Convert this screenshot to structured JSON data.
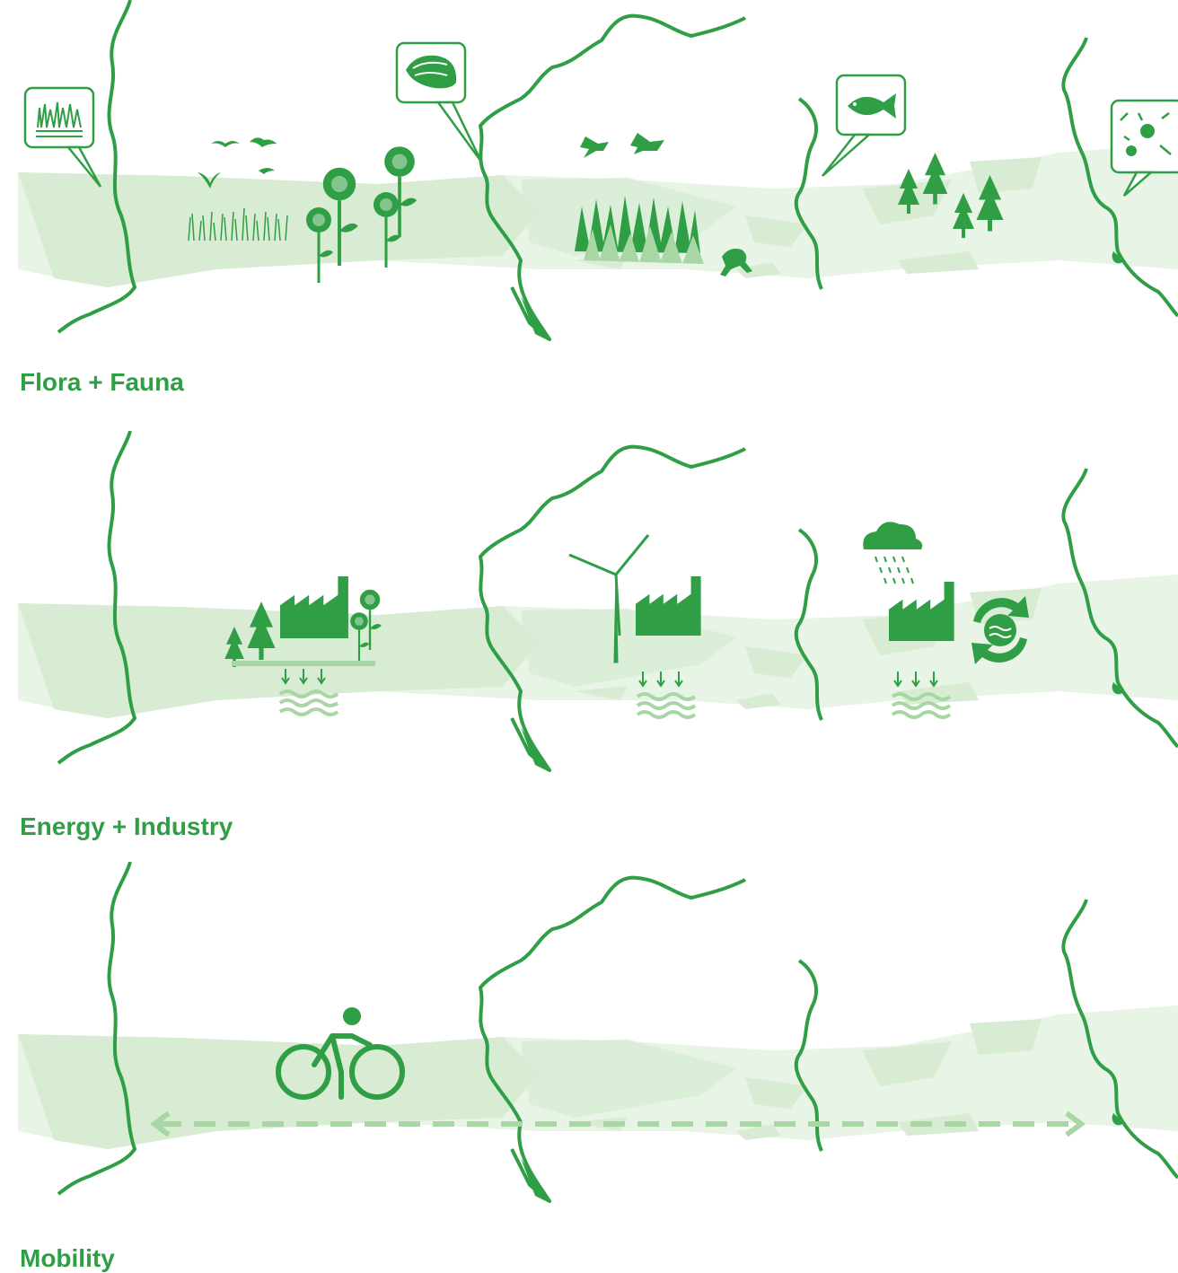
{
  "colors": {
    "accent": "#2f9e45",
    "land": "#d7ecd3",
    "land_light": "#e8f4e5",
    "light_accent": "#a8d6a4"
  },
  "panels": [
    {
      "id": "flora-fauna",
      "caption": "Flora + Fauna",
      "icons": [
        "wetland-callout-icon",
        "bird-icon",
        "bird-icon",
        "bird-icon",
        "bird-icon",
        "reed-icon",
        "sunflower-icon",
        "shellfish-callout-icon",
        "crane-icon",
        "grass-icon",
        "frog-icon",
        "fish-callout-icon",
        "tree-icon",
        "microbe-callout-icon"
      ]
    },
    {
      "id": "energy-industry",
      "caption": "Energy + Industry",
      "icons": [
        "tree-icon",
        "factory-icon",
        "sunflower-icon",
        "groundwater-icon",
        "wind-turbine-icon",
        "factory-icon",
        "groundwater-icon",
        "rain-cloud-icon",
        "factory-icon",
        "groundwater-icon",
        "water-recycle-icon"
      ]
    },
    {
      "id": "mobility",
      "caption": "Mobility",
      "icons": [
        "cyclist-icon",
        "double-arrow-path-icon"
      ]
    }
  ]
}
